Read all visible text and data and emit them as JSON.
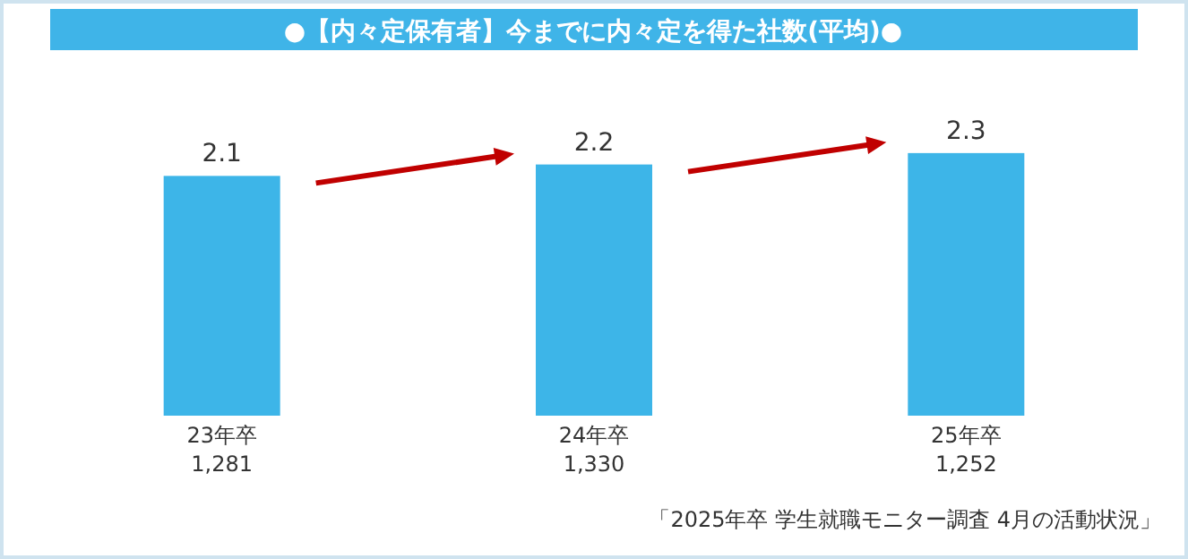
{
  "chart_data": {
    "type": "bar",
    "title": "●【内々定保有者】今までに内々定を得た社数(平均)●",
    "categories": [
      "23年卒\n1,281",
      "24年卒\n1,330",
      "25年卒\n1,252"
    ],
    "values": [
      2.1,
      2.2,
      2.3
    ],
    "color": "#3db5e8",
    "data_labels": true,
    "annotations": [
      "「2025年卒 学生就職モニター調査 4月の活動状況」"
    ]
  }
}
